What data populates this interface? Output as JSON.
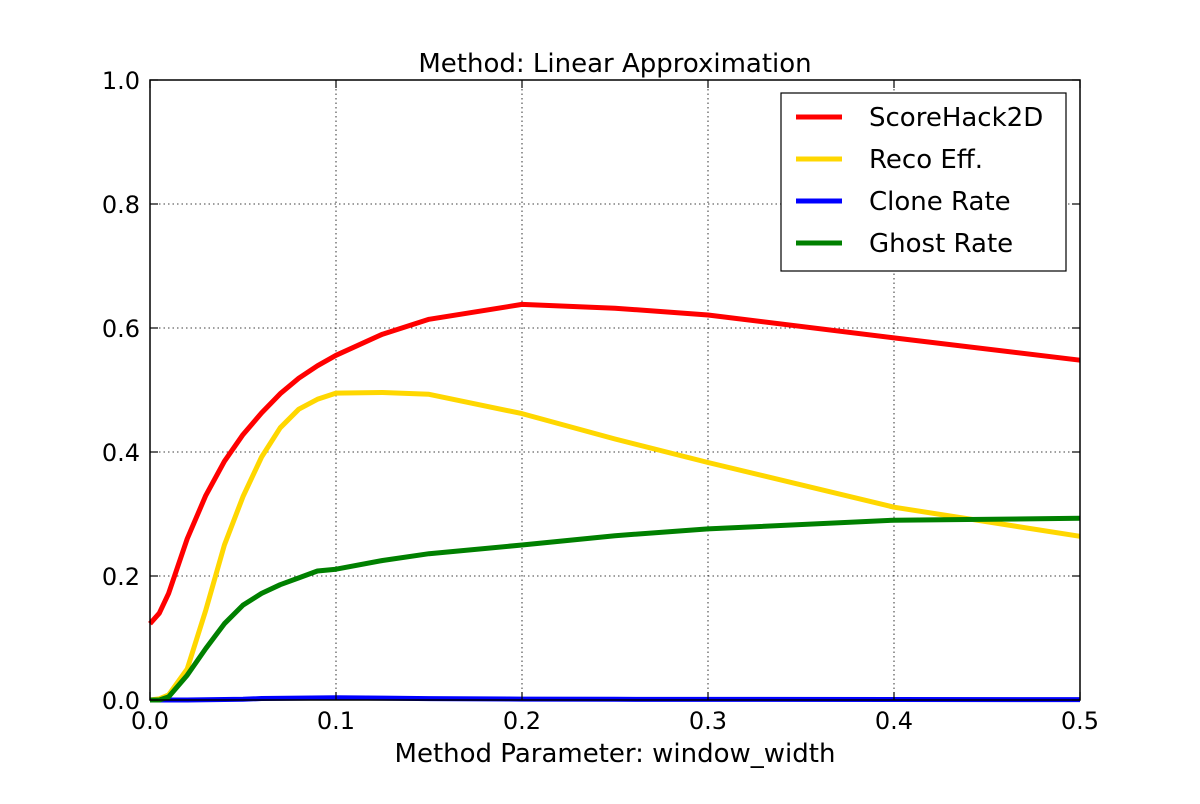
{
  "chart_data": {
    "type": "line",
    "title": "Method: Linear Approximation",
    "xlabel": "Method Parameter: window_width",
    "ylabel": "",
    "xlim": [
      0.0,
      0.5
    ],
    "ylim": [
      0.0,
      1.0
    ],
    "x_ticks": [
      0.0,
      0.1,
      0.2,
      0.3,
      0.4,
      0.5
    ],
    "x_tick_labels": [
      "0.0",
      "0.1",
      "0.2",
      "0.3",
      "0.4",
      "0.5"
    ],
    "y_ticks": [
      0.0,
      0.2,
      0.4,
      0.6,
      0.8,
      1.0
    ],
    "y_tick_labels": [
      "0.0",
      "0.2",
      "0.4",
      "0.6",
      "0.8",
      "1.0"
    ],
    "grid": true,
    "legend_position": "top-right",
    "series": [
      {
        "name": "ScoreHack2D",
        "color": "#ff0000",
        "x": [
          0.0,
          0.005,
          0.01,
          0.02,
          0.03,
          0.04,
          0.05,
          0.06,
          0.07,
          0.08,
          0.09,
          0.1,
          0.125,
          0.15,
          0.2,
          0.25,
          0.3,
          0.4,
          0.5
        ],
        "y": [
          0.123,
          0.14,
          0.172,
          0.26,
          0.33,
          0.385,
          0.428,
          0.463,
          0.494,
          0.519,
          0.539,
          0.556,
          0.59,
          0.614,
          0.638,
          0.632,
          0.621,
          0.584,
          0.548
        ]
      },
      {
        "name": "Reco Eff.",
        "color": "#ffd700",
        "x": [
          0.0,
          0.005,
          0.01,
          0.02,
          0.03,
          0.04,
          0.05,
          0.06,
          0.07,
          0.08,
          0.09,
          0.1,
          0.125,
          0.15,
          0.2,
          0.25,
          0.3,
          0.4,
          0.5
        ],
        "y": [
          0.0,
          0.002,
          0.008,
          0.05,
          0.145,
          0.25,
          0.328,
          0.392,
          0.439,
          0.469,
          0.485,
          0.495,
          0.496,
          0.493,
          0.462,
          0.421,
          0.383,
          0.311,
          0.264
        ]
      },
      {
        "name": "Clone Rate",
        "color": "#0000ff",
        "x": [
          0.0,
          0.01,
          0.02,
          0.03,
          0.04,
          0.05,
          0.06,
          0.08,
          0.1,
          0.125,
          0.15,
          0.2,
          0.25,
          0.3,
          0.4,
          0.5
        ],
        "y": [
          0.0,
          0.0,
          0.0,
          0.0005,
          0.0008,
          0.0012,
          0.0025,
          0.003,
          0.0035,
          0.003,
          0.0022,
          0.0015,
          0.0012,
          0.001,
          0.0008,
          0.0006
        ]
      },
      {
        "name": "Ghost Rate",
        "color": "#008000",
        "x": [
          0.0,
          0.005,
          0.01,
          0.02,
          0.03,
          0.04,
          0.05,
          0.06,
          0.07,
          0.08,
          0.09,
          0.1,
          0.125,
          0.15,
          0.2,
          0.25,
          0.3,
          0.4,
          0.5
        ],
        "y": [
          0.0,
          0.0,
          0.005,
          0.04,
          0.083,
          0.123,
          0.153,
          0.172,
          0.186,
          0.197,
          0.208,
          0.211,
          0.225,
          0.236,
          0.25,
          0.265,
          0.276,
          0.29,
          0.293
        ]
      }
    ]
  }
}
